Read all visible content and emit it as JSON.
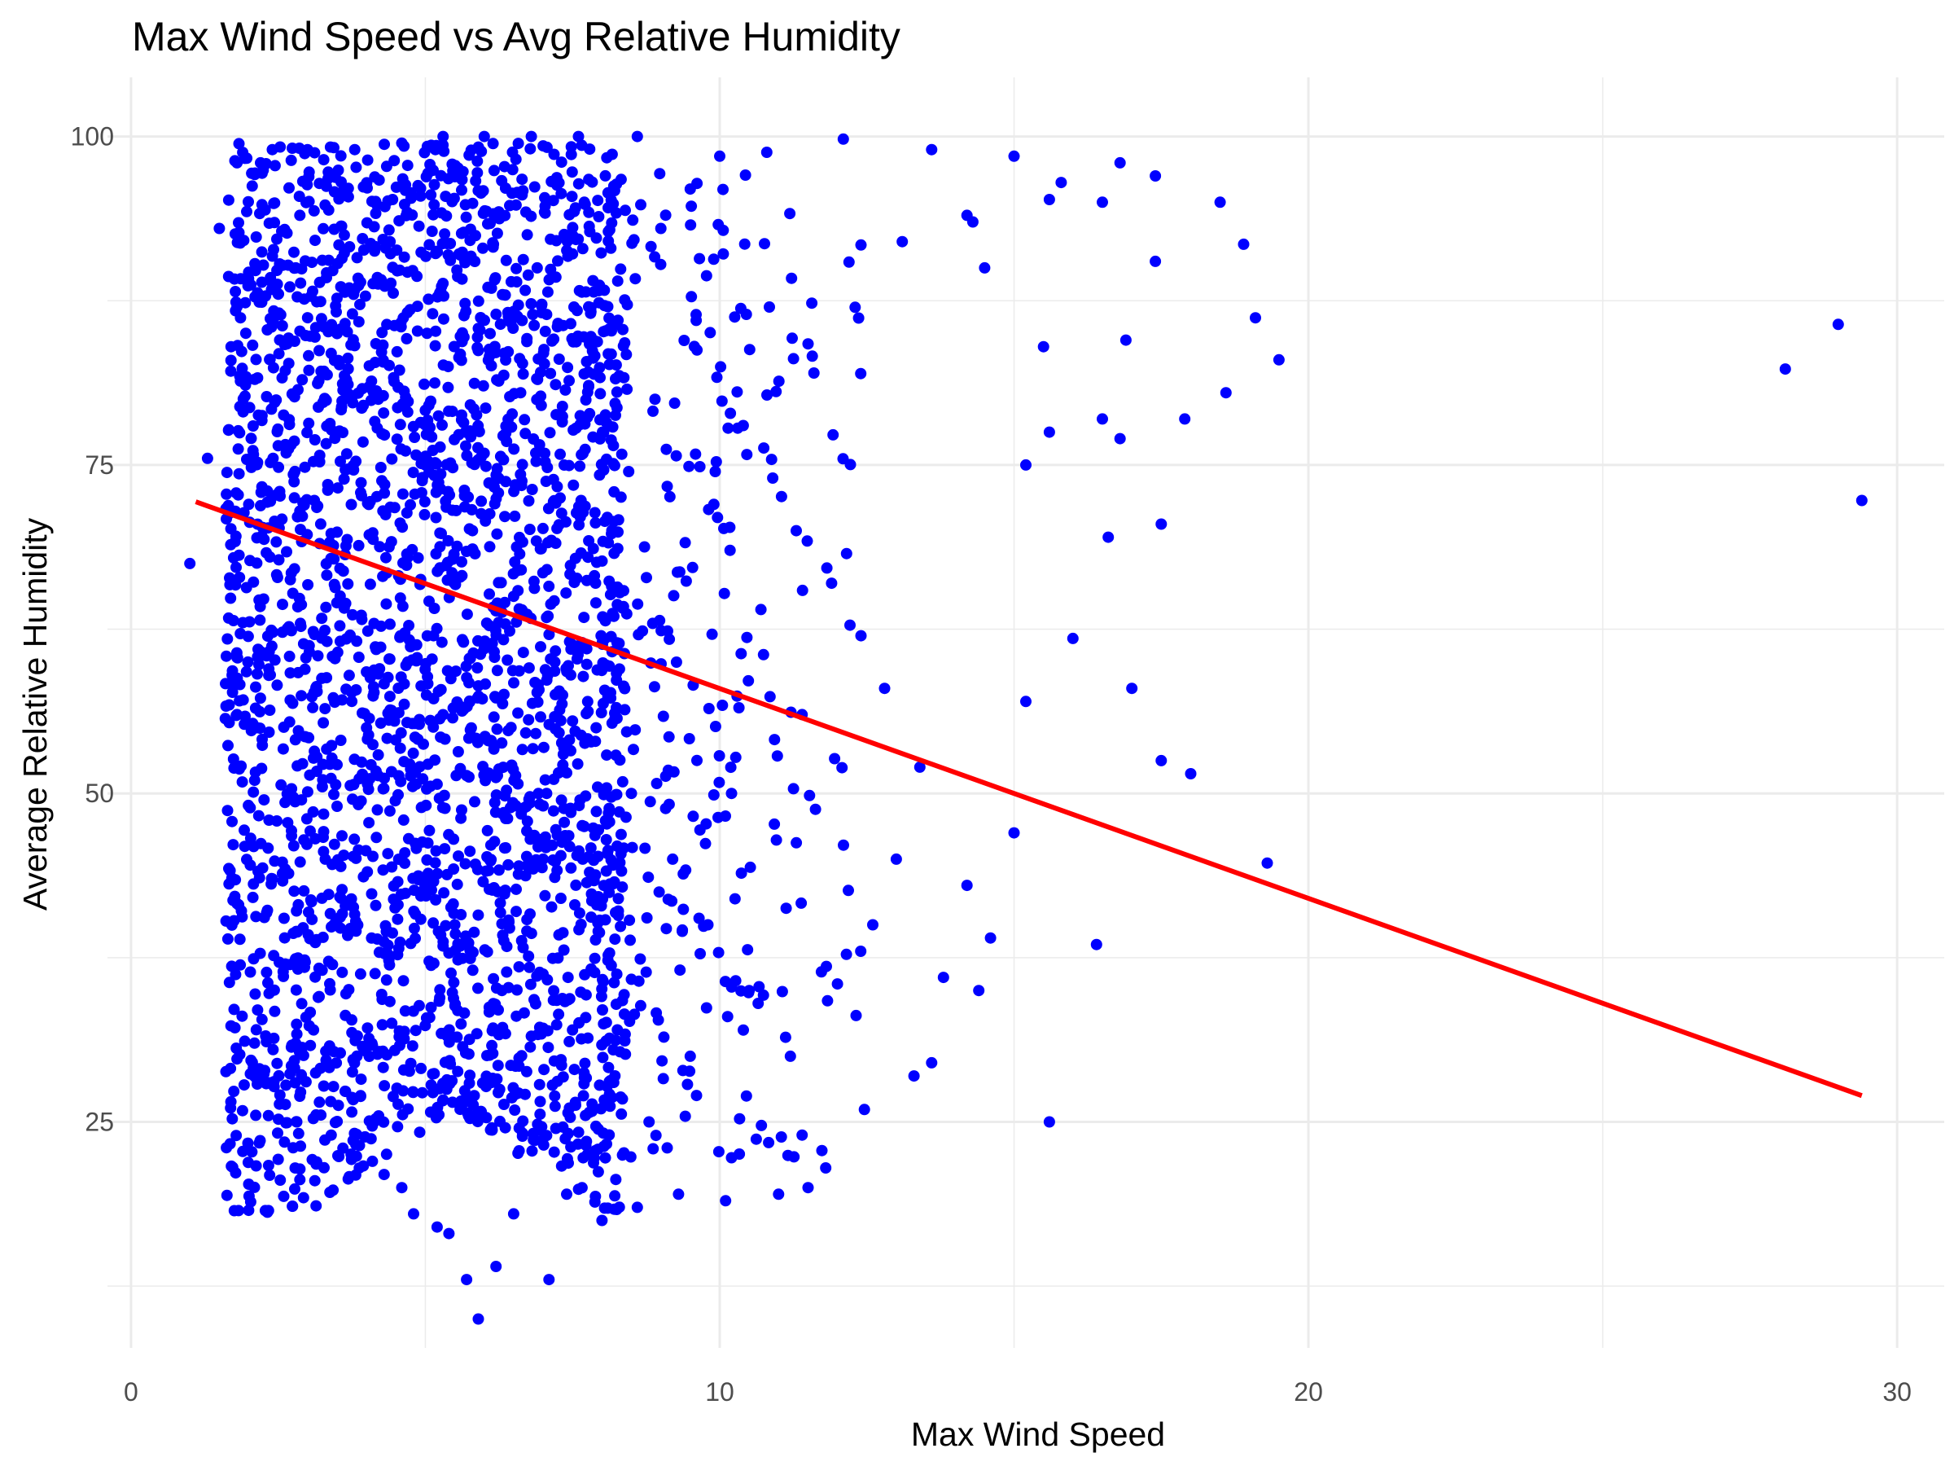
{
  "chart_data": {
    "type": "scatter",
    "title": "Max Wind Speed vs Avg Relative Humidity",
    "xlabel": "Max Wind Speed",
    "ylabel": "Average Relative Humidity",
    "xlim": [
      -0.4,
      30.8
    ],
    "ylim": [
      7.8,
      104.5
    ],
    "x_ticks": [
      0,
      10,
      20,
      30
    ],
    "y_ticks": [
      25,
      50,
      75,
      100
    ],
    "grid": true,
    "legend": "none",
    "colors": {
      "points": "#0000ff",
      "trend_line": "#ff0000",
      "grid": "#ebebeb"
    },
    "series": [
      {
        "kind": "points",
        "note_points": "dense cloud of points, representative sample",
        "points": [
          [
            1.0,
            67.5
          ],
          [
            1.3,
            75.5
          ],
          [
            1.5,
            93.0
          ],
          [
            1.7,
            84.0
          ],
          [
            1.8,
            56.0
          ],
          [
            1.9,
            63.0
          ],
          [
            2.0,
            72.0
          ],
          [
            2.1,
            51.0
          ],
          [
            2.2,
            98.0
          ],
          [
            2.4,
            43.5
          ],
          [
            2.5,
            88.0
          ],
          [
            2.6,
            40.5
          ],
          [
            2.8,
            37.0
          ],
          [
            2.9,
            34.0
          ],
          [
            3.1,
            32.0
          ],
          [
            3.2,
            26.5
          ],
          [
            3.4,
            24.0
          ],
          [
            3.6,
            23.0
          ],
          [
            3.9,
            27.0
          ],
          [
            4.1,
            22.0
          ],
          [
            4.3,
            21.0
          ],
          [
            4.6,
            20.0
          ],
          [
            4.8,
            18.0
          ],
          [
            5.2,
            17.0
          ],
          [
            5.4,
            16.5
          ],
          [
            5.7,
            13.0
          ],
          [
            5.9,
            10.0
          ],
          [
            6.2,
            14.0
          ],
          [
            6.5,
            18.0
          ],
          [
            7.1,
            13.0
          ],
          [
            7.4,
            19.5
          ],
          [
            8.0,
            17.5
          ],
          [
            8.6,
            18.5
          ],
          [
            9.3,
            19.5
          ],
          [
            10.1,
            19.0
          ],
          [
            11.0,
            19.5
          ],
          [
            11.5,
            20.0
          ],
          [
            11.8,
            21.5
          ],
          [
            11.4,
            24.0
          ],
          [
            13.3,
            28.5
          ],
          [
            13.6,
            29.5
          ],
          [
            13.8,
            36.0
          ],
          [
            14.4,
            35.0
          ],
          [
            14.6,
            39.0
          ],
          [
            15.6,
            25.0
          ],
          [
            16.4,
            38.5
          ],
          [
            14.2,
            43.0
          ],
          [
            15.0,
            47.0
          ],
          [
            19.3,
            44.7
          ],
          [
            15.2,
            57.0
          ],
          [
            16.0,
            61.8
          ],
          [
            17.0,
            58.0
          ],
          [
            18.0,
            51.5
          ],
          [
            17.5,
            52.5
          ],
          [
            17.5,
            70.5
          ],
          [
            16.6,
            69.5
          ],
          [
            15.2,
            75.0
          ],
          [
            15.6,
            77.5
          ],
          [
            16.5,
            78.5
          ],
          [
            16.8,
            77.0
          ],
          [
            17.9,
            78.5
          ],
          [
            18.6,
            80.5
          ],
          [
            19.5,
            83.0
          ],
          [
            16.9,
            84.5
          ],
          [
            15.5,
            84.0
          ],
          [
            19.1,
            86.2
          ],
          [
            17.4,
            90.5
          ],
          [
            18.9,
            91.8
          ],
          [
            18.5,
            95.0
          ],
          [
            17.4,
            97.0
          ],
          [
            16.5,
            95.0
          ],
          [
            15.6,
            95.2
          ],
          [
            15.8,
            96.5
          ],
          [
            15.0,
            98.5
          ],
          [
            16.8,
            98.0
          ],
          [
            14.2,
            94.0
          ],
          [
            14.5,
            90.0
          ],
          [
            14.3,
            93.5
          ],
          [
            13.6,
            99.0
          ],
          [
            12.1,
            99.8
          ],
          [
            10.8,
            98.8
          ],
          [
            10.0,
            98.5
          ],
          [
            9.5,
            96.0
          ],
          [
            9.0,
            93.0
          ],
          [
            8.6,
            100.0
          ],
          [
            7.6,
            100.0
          ],
          [
            6.8,
            100.0
          ],
          [
            6.0,
            100.0
          ],
          [
            5.3,
            100.0
          ],
          [
            4.6,
            99.5
          ],
          [
            3.8,
            99.0
          ],
          [
            3.0,
            99.0
          ],
          [
            2.4,
            99.0
          ],
          [
            1.8,
            98.0
          ],
          [
            2.8,
            90.0
          ],
          [
            3.5,
            85.0
          ],
          [
            4.2,
            80.0
          ],
          [
            5.0,
            75.0
          ],
          [
            5.8,
            70.0
          ],
          [
            6.5,
            65.0
          ],
          [
            7.2,
            60.0
          ],
          [
            7.9,
            55.0
          ],
          [
            8.5,
            50.0
          ],
          [
            9.2,
            45.0
          ],
          [
            9.8,
            40.0
          ],
          [
            10.5,
            35.0
          ],
          [
            11.2,
            30.0
          ],
          [
            12.0,
            35.5
          ],
          [
            12.6,
            40.0
          ],
          [
            13.0,
            45.0
          ],
          [
            13.4,
            52.0
          ],
          [
            12.8,
            58.0
          ],
          [
            12.4,
            62.0
          ],
          [
            11.9,
            66.0
          ],
          [
            11.3,
            70.0
          ],
          [
            10.9,
            74.0
          ],
          [
            10.4,
            78.0
          ],
          [
            11.6,
            82.0
          ],
          [
            12.3,
            87.0
          ],
          [
            13.1,
            92.0
          ],
          [
            9.6,
            86.0
          ],
          [
            8.9,
            80.0
          ],
          [
            9.9,
            72.0
          ],
          [
            10.7,
            64.0
          ],
          [
            11.4,
            56.0
          ],
          [
            10.2,
            50.0
          ],
          [
            9.5,
            30.0
          ],
          [
            8.8,
            25.0
          ],
          [
            8.2,
            28.0
          ],
          [
            7.5,
            32.0
          ],
          [
            3.3,
            45.0
          ],
          [
            4.0,
            55.0
          ],
          [
            4.7,
            60.0
          ],
          [
            5.5,
            40.0
          ],
          [
            6.3,
            35.0
          ],
          [
            7.0,
            45.0
          ],
          [
            6.1,
            85.0
          ],
          [
            6.9,
            90.0
          ],
          [
            7.7,
            95.0
          ],
          [
            4.4,
            92.0
          ],
          [
            28.1,
            82.3
          ],
          [
            29.0,
            85.7
          ],
          [
            29.4,
            72.3
          ]
        ]
      },
      {
        "kind": "line",
        "points": [
          [
            1.1,
            72.2
          ],
          [
            29.4,
            27.0
          ]
        ]
      }
    ]
  }
}
